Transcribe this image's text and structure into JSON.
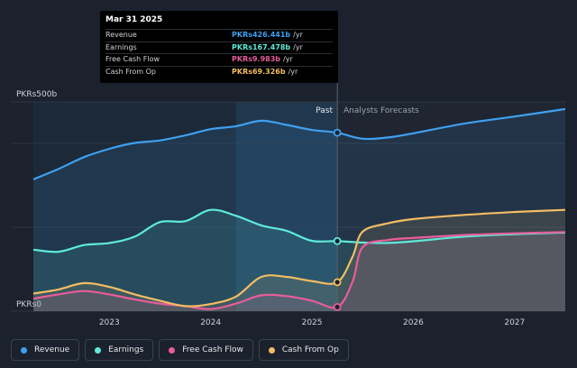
{
  "chart_data": {
    "type": "line",
    "y_axis_labels": {
      "top": "PKRs500b",
      "bottom": "PKRs0"
    },
    "ylim": [
      0,
      500
    ],
    "xlim": [
      2022.25,
      2027.5
    ],
    "x_ticks": [
      "2023",
      "2024",
      "2025",
      "2026",
      "2027"
    ],
    "x_tick_values": [
      2023,
      2024,
      2025,
      2026,
      2027
    ],
    "past_label": "Past",
    "forecast_label": "Analysts Forecasts",
    "past_end": 2025.25,
    "highlight_range": [
      2024.25,
      2025.25
    ],
    "grid": true,
    "series": [
      {
        "name": "Revenue",
        "color": "#3fa0ef",
        "points": [
          [
            2022.25,
            315
          ],
          [
            2022.5,
            340
          ],
          [
            2022.75,
            368
          ],
          [
            2023.0,
            388
          ],
          [
            2023.25,
            402
          ],
          [
            2023.5,
            408
          ],
          [
            2023.75,
            420
          ],
          [
            2024.0,
            435
          ],
          [
            2024.25,
            442
          ],
          [
            2024.5,
            455
          ],
          [
            2024.75,
            445
          ],
          [
            2025.0,
            433
          ],
          [
            2025.25,
            426.4
          ]
        ],
        "forecast": [
          [
            2025.25,
            426.4
          ],
          [
            2025.5,
            412
          ],
          [
            2025.75,
            415
          ],
          [
            2026.0,
            425
          ],
          [
            2026.5,
            448
          ],
          [
            2027.0,
            465
          ],
          [
            2027.5,
            483
          ]
        ]
      },
      {
        "name": "Earnings",
        "color": "#5eead9",
        "points": [
          [
            2022.25,
            147
          ],
          [
            2022.5,
            142
          ],
          [
            2022.75,
            158
          ],
          [
            2023.0,
            163
          ],
          [
            2023.25,
            178
          ],
          [
            2023.5,
            213
          ],
          [
            2023.75,
            215
          ],
          [
            2024.0,
            242
          ],
          [
            2024.25,
            228
          ],
          [
            2024.5,
            205
          ],
          [
            2024.75,
            192
          ],
          [
            2025.0,
            168
          ],
          [
            2025.25,
            167.5
          ]
        ],
        "forecast": [
          [
            2025.25,
            167.5
          ],
          [
            2025.5,
            164
          ],
          [
            2025.75,
            163
          ],
          [
            2026.0,
            167
          ],
          [
            2026.5,
            178
          ],
          [
            2027.0,
            184
          ],
          [
            2027.5,
            188
          ]
        ]
      },
      {
        "name": "Free Cash Flow",
        "color": "#e85d9b",
        "points": [
          [
            2022.25,
            30
          ],
          [
            2022.5,
            40
          ],
          [
            2022.75,
            48
          ],
          [
            2023.0,
            40
          ],
          [
            2023.25,
            28
          ],
          [
            2023.5,
            18
          ],
          [
            2023.75,
            12
          ],
          [
            2024.0,
            5
          ],
          [
            2024.25,
            18
          ],
          [
            2024.5,
            38
          ],
          [
            2024.75,
            36
          ],
          [
            2025.0,
            25
          ],
          [
            2025.25,
            10
          ]
        ],
        "forecast": [
          [
            2025.25,
            10
          ],
          [
            2025.4,
            70
          ],
          [
            2025.5,
            153
          ],
          [
            2025.75,
            170
          ],
          [
            2026.0,
            175
          ],
          [
            2026.5,
            182
          ],
          [
            2027.0,
            186
          ],
          [
            2027.5,
            189
          ]
        ]
      },
      {
        "name": "Cash From Op",
        "color": "#f2bd63",
        "points": [
          [
            2022.25,
            42
          ],
          [
            2022.5,
            52
          ],
          [
            2022.75,
            67
          ],
          [
            2023.0,
            58
          ],
          [
            2023.25,
            40
          ],
          [
            2023.5,
            25
          ],
          [
            2023.75,
            12
          ],
          [
            2024.0,
            17
          ],
          [
            2024.25,
            35
          ],
          [
            2024.5,
            82
          ],
          [
            2024.75,
            82
          ],
          [
            2025.0,
            72
          ],
          [
            2025.25,
            69.3
          ]
        ],
        "forecast": [
          [
            2025.25,
            69.3
          ],
          [
            2025.4,
            130
          ],
          [
            2025.5,
            190
          ],
          [
            2025.75,
            210
          ],
          [
            2026.0,
            220
          ],
          [
            2026.5,
            230
          ],
          [
            2027.0,
            237
          ],
          [
            2027.5,
            242
          ]
        ]
      }
    ],
    "marker_x": 2025.25
  },
  "tooltip": {
    "date": "Mar 31 2025",
    "rows": [
      {
        "name": "Revenue",
        "value": "PKRs426.441b",
        "unit": "/yr",
        "color": "#3fa0ef"
      },
      {
        "name": "Earnings",
        "value": "PKRs167.478b",
        "unit": "/yr",
        "color": "#5eead9"
      },
      {
        "name": "Free Cash Flow",
        "value": "PKRs9.983b",
        "unit": "/yr",
        "color": "#e85d9b"
      },
      {
        "name": "Cash From Op",
        "value": "PKRs69.326b",
        "unit": "/yr",
        "color": "#f2bd63"
      }
    ]
  },
  "legend": [
    {
      "label": "Revenue",
      "color": "#3fa0ef"
    },
    {
      "label": "Earnings",
      "color": "#5eead9"
    },
    {
      "label": "Free Cash Flow",
      "color": "#e85d9b"
    },
    {
      "label": "Cash From Op",
      "color": "#f2bd63"
    }
  ]
}
